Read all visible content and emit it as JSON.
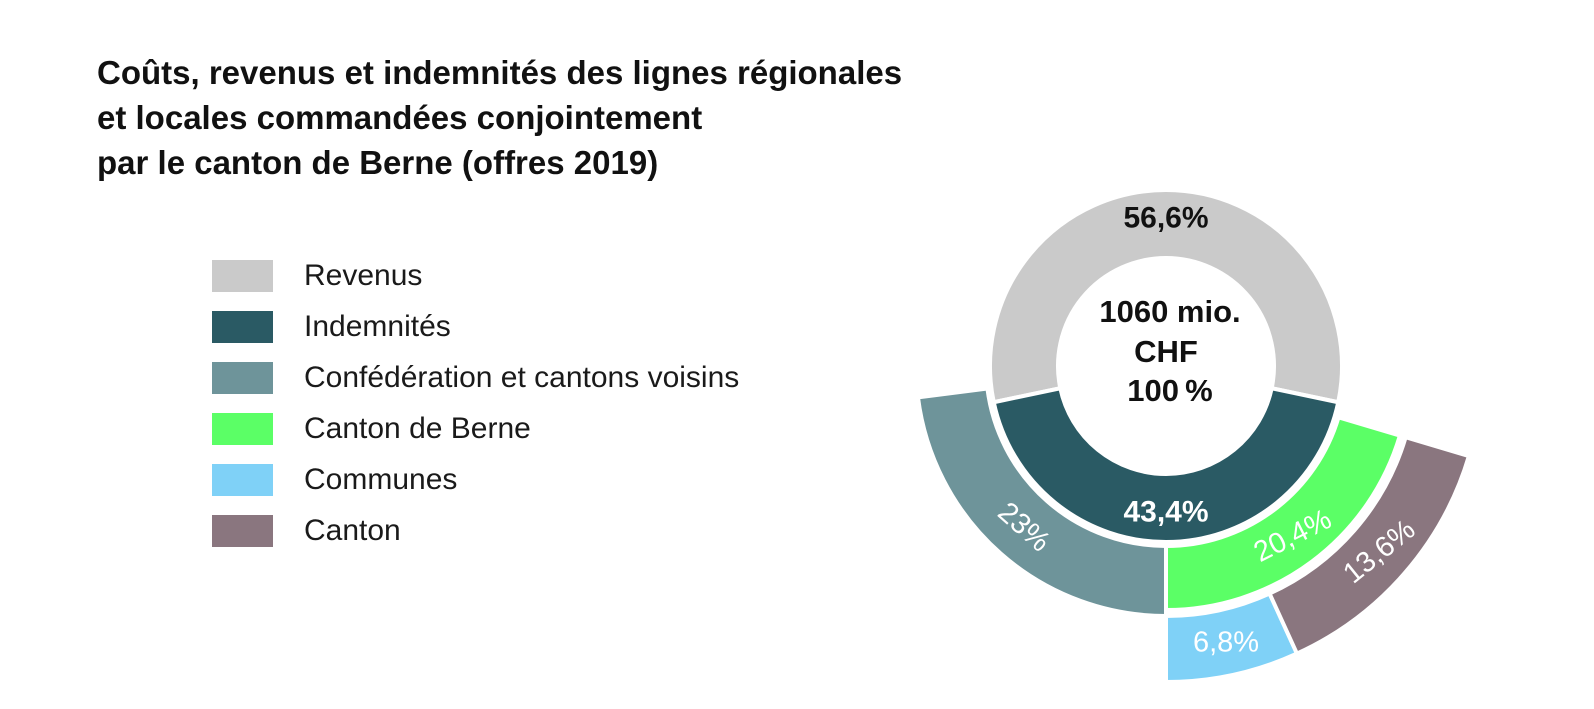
{
  "chart_data": {
    "type": "sunburst-donut",
    "title": [
      "Coûts, revenus et indemnités des lignes régionales",
      "et locales commandées conjointement",
      "par le canton de Berne (offres 2019)"
    ],
    "center": {
      "lines": [
        "1060 mio.",
        "CHF",
        "100 %"
      ]
    },
    "inner_ring": [
      {
        "name": "Revenus",
        "value": 56.6,
        "label": "56,6%",
        "color": "#cacaca"
      },
      {
        "name": "Indemnités",
        "value": 43.4,
        "label": "43,4%",
        "color": "#2a5a64"
      }
    ],
    "outer_ring": [
      {
        "name": "Confédération et cantons voisins",
        "value": 23,
        "label": "23%",
        "color": "#6e949a"
      },
      {
        "name": "Communes",
        "value": 6.8,
        "label": "6,8%",
        "color": "#7fd1f7"
      },
      {
        "name": "Canton de Berne",
        "value": 20.4,
        "label": "20,4%",
        "color": "#5bff66"
      },
      {
        "name": "Canton",
        "value": 13.6,
        "label": "13,6%",
        "color": "#8a767f"
      }
    ],
    "legend": [
      {
        "label": "Revenus",
        "color": "#cacaca"
      },
      {
        "label": "Indemnités",
        "color": "#2a5a64"
      },
      {
        "label": "Confédération et cantons voisins",
        "color": "#6e949a"
      },
      {
        "label": "Canton de Berne",
        "color": "#5bff66"
      },
      {
        "label": "Communes",
        "color": "#7fd1f7"
      },
      {
        "label": "Canton",
        "color": "#8a767f"
      }
    ]
  }
}
